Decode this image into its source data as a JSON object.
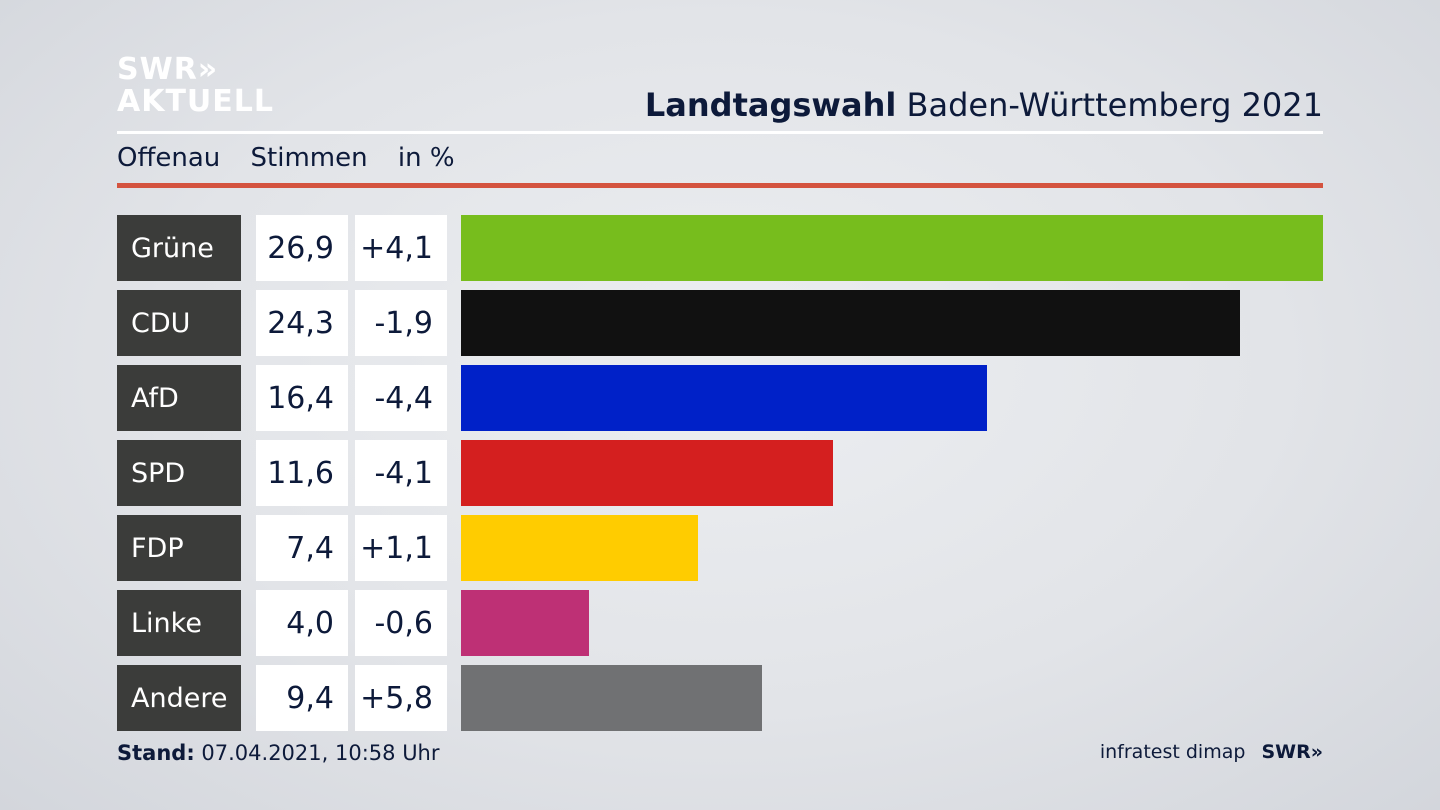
{
  "header": {
    "logo_line1": "SWR»",
    "logo_line2": "AKTUELL",
    "title_bold": "Landtagswahl",
    "title_rest": "Baden-Württemberg 2021",
    "location": "Offenau",
    "measure": "Stimmen",
    "unit": "in %"
  },
  "footer": {
    "stand_label": "Stand:",
    "stand_value": "07.04.2021, 10:58 Uhr",
    "source": "infratest dimap",
    "source_logo": "SWR»"
  },
  "chart_data": {
    "type": "bar",
    "orientation": "horizontal",
    "categories": [
      "Grüne",
      "CDU",
      "AfD",
      "SPD",
      "FDP",
      "Linke",
      "Andere"
    ],
    "values": [
      26.9,
      24.3,
      16.4,
      11.6,
      7.4,
      4.0,
      9.4
    ],
    "value_labels": [
      "26,9",
      "24,3",
      "16,4",
      "11,6",
      "7,4",
      "4,0",
      "9,4"
    ],
    "diff_labels": [
      "+4,1",
      "-1,9",
      "-4,4",
      "-4,1",
      "+1,1",
      "-0,6",
      "+5,8"
    ],
    "colors": [
      "#77bd1d",
      "#111111",
      "#0021c8",
      "#d41f1f",
      "#ffcc00",
      "#be3075",
      "#707173"
    ],
    "xlim": [
      0,
      26.9
    ],
    "grid": false
  }
}
